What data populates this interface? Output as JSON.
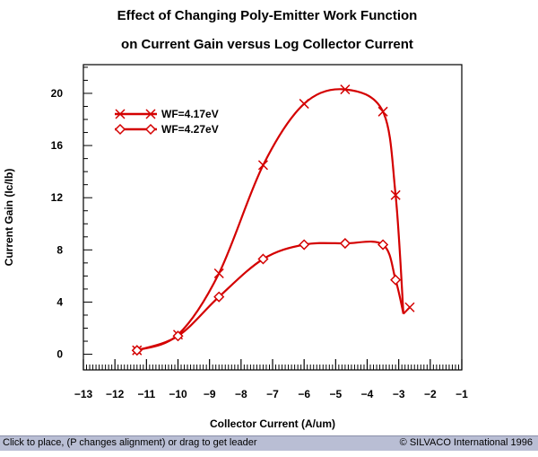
{
  "window": {
    "title_line1": "Effect of Changing Poly-Emitter Work Function",
    "title_line2": "on Current Gain versus Log Collector Current"
  },
  "status_bar": {
    "hint": "Click to place, (P changes alignment) or drag to get leader",
    "copyright": "© SILVACO International 1996",
    "background": "#b9bed4"
  },
  "colors": {
    "curve": "#d40000",
    "axis": "#000000"
  },
  "chart_data": {
    "type": "line",
    "title": "Effect of Changing Poly-Emitter Work Function on Current Gain versus Log Collector Current",
    "xlabel": "Collector Current (A/um)",
    "ylabel": "Current Gain (Ic/Ib)",
    "xlim": [
      -13,
      -1
    ],
    "ylim": [
      -1.2,
      22.2
    ],
    "x_ticks": [
      -13,
      -12,
      -11,
      -10,
      -9,
      -8,
      -7,
      -6,
      -5,
      -4,
      -3,
      -2,
      -1
    ],
    "x_tick_labels": [
      "−13",
      "−12",
      "−11",
      "−10",
      "−9",
      "−8",
      "−7",
      "−6",
      "−5",
      "−4",
      "−3",
      "−2",
      "−1"
    ],
    "y_ticks": [
      0,
      4,
      8,
      12,
      16,
      20
    ],
    "y_tick_labels": [
      "0",
      "4",
      "8",
      "12",
      "16",
      "20"
    ],
    "legend_position": "top-left",
    "series": [
      {
        "name": "WF=4.17eV",
        "marker": "x",
        "color": "#d40000",
        "x": [
          -11.3,
          -10.0,
          -8.7,
          -7.3,
          -6.0,
          -4.7,
          -3.5,
          -3.1,
          -2.65
        ],
        "y": [
          0.3,
          1.5,
          6.2,
          14.5,
          19.2,
          20.3,
          18.6,
          12.2,
          3.6
        ],
        "curve_end": [
          -2.85,
          3.1
        ]
      },
      {
        "name": "WF=4.27eV",
        "marker": "diamond",
        "color": "#d40000",
        "x": [
          -11.3,
          -10.0,
          -8.7,
          -7.3,
          -6.0,
          -4.7,
          -3.5,
          -3.1
        ],
        "y": [
          0.3,
          1.4,
          4.4,
          7.3,
          8.4,
          8.5,
          8.4,
          5.7
        ],
        "curve_end": [
          -2.85,
          3.1
        ]
      }
    ]
  }
}
